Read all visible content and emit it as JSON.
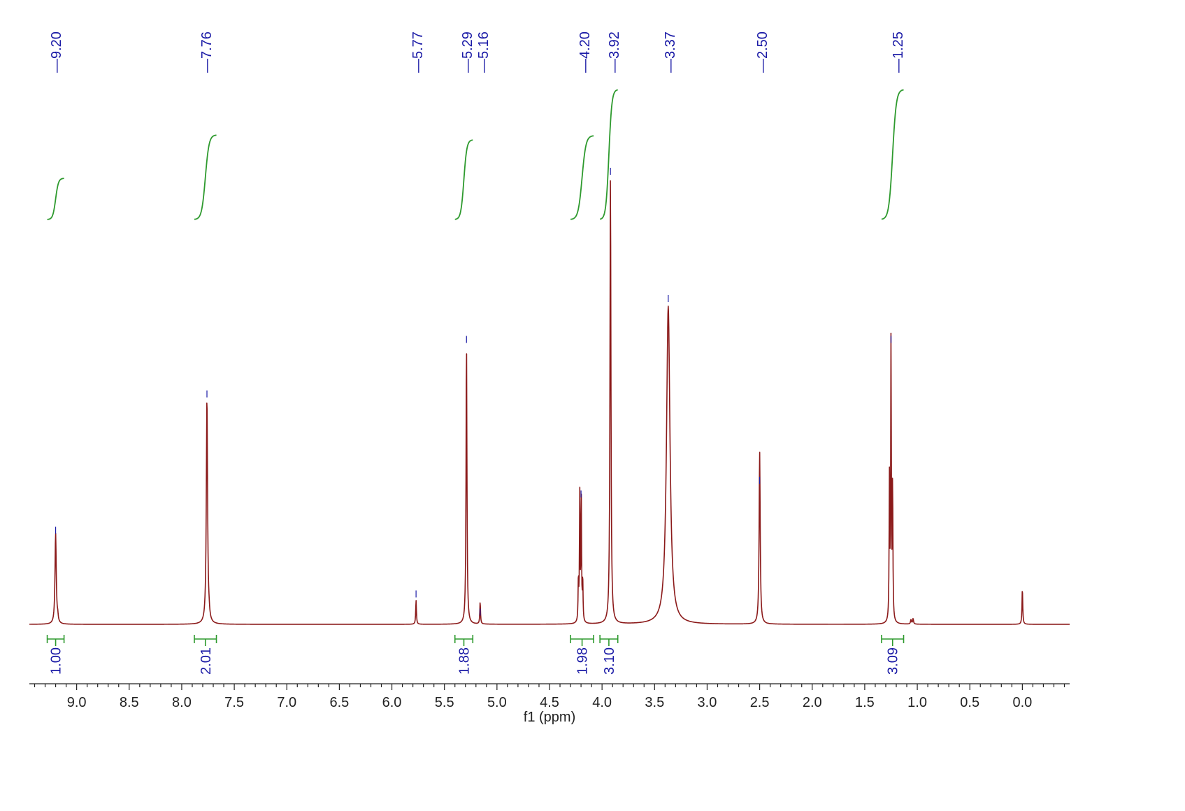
{
  "chart_data": {
    "type": "line",
    "title": "",
    "xlabel": "f1 (ppm)",
    "ylabel": "",
    "x_reversed": true,
    "xlim": [
      9.45,
      -0.45
    ],
    "ylim": [
      0,
      1.0
    ],
    "grid": false,
    "colors": {
      "spectrum": "#8b1a1a",
      "integral": "#2e9a2e",
      "label": "#1a1aa6",
      "axis": "#222222"
    },
    "x_ticks": [
      {
        "value": 9.0,
        "label": "9.0"
      },
      {
        "value": 8.5,
        "label": "8.5"
      },
      {
        "value": 8.0,
        "label": "8.0"
      },
      {
        "value": 7.5,
        "label": "7.5"
      },
      {
        "value": 7.0,
        "label": "7.0"
      },
      {
        "value": 6.5,
        "label": "6.5"
      },
      {
        "value": 6.0,
        "label": "6.0"
      },
      {
        "value": 5.5,
        "label": "5.5"
      },
      {
        "value": 5.0,
        "label": "5.0"
      },
      {
        "value": 4.5,
        "label": "4.5"
      },
      {
        "value": 4.0,
        "label": "4.0"
      },
      {
        "value": 3.5,
        "label": "3.5"
      },
      {
        "value": 3.0,
        "label": "3.0"
      },
      {
        "value": 2.5,
        "label": "2.5"
      },
      {
        "value": 2.0,
        "label": "2.0"
      },
      {
        "value": 1.5,
        "label": "1.5"
      },
      {
        "value": 1.0,
        "label": "1.0"
      },
      {
        "value": 0.5,
        "label": "0.5"
      },
      {
        "value": 0.0,
        "label": "0.0"
      }
    ],
    "peak_labels": [
      {
        "ppm": 9.2,
        "label": "9.20",
        "mark_height": 0.21
      },
      {
        "ppm": 7.76,
        "label": "7.76",
        "mark_height": 0.51
      },
      {
        "ppm": 5.77,
        "label": "5.77",
        "mark_height": 0.07
      },
      {
        "ppm": 5.29,
        "label": "5.29",
        "mark_height": 0.63
      },
      {
        "ppm": 5.16,
        "label": "5.16",
        "mark_height": 0.03
      },
      {
        "ppm": 4.2,
        "label": "4.20",
        "mark_height": 0.29
      },
      {
        "ppm": 3.92,
        "label": "3.92",
        "mark_height": 1.0
      },
      {
        "ppm": 3.37,
        "label": "3.37",
        "mark_height": 0.72
      },
      {
        "ppm": 2.5,
        "label": "2.50",
        "mark_height": 0.32
      },
      {
        "ppm": 1.25,
        "label": "1.25",
        "mark_height": 0.63
      }
    ],
    "integrals": [
      {
        "from": 9.28,
        "to": 9.12,
        "value": "1.00",
        "curve_from": 0.85,
        "curve_to": 0.94
      },
      {
        "from": 7.88,
        "to": 7.67,
        "value": "2.01",
        "curve_from": 0.85,
        "curve_to": 1.03
      },
      {
        "from": 5.4,
        "to": 5.23,
        "value": "1.88",
        "curve_from": 0.85,
        "curve_to": 1.02
      },
      {
        "from": 4.3,
        "to": 4.08,
        "value": "1.98",
        "curve_from": 0.85,
        "curve_to": 1.04
      },
      {
        "from": 4.02,
        "to": 3.85,
        "value": "3.10",
        "curve_from": 0.85,
        "curve_to": 1.13
      },
      {
        "from": 1.34,
        "to": 1.13,
        "value": "3.09",
        "curve_from": 0.85,
        "curve_to": 1.13
      }
    ],
    "series": [
      {
        "peaks": [
          {
            "ppm": 9.2,
            "height": 0.2,
            "width": 0.007
          },
          {
            "ppm": 9.18,
            "height": 0.012,
            "width": 0.005
          },
          {
            "ppm": 7.76,
            "height": 0.5,
            "width": 0.007
          },
          {
            "ppm": 7.74,
            "height": 0.01,
            "width": 0.006
          },
          {
            "ppm": 5.77,
            "height": 0.053,
            "width": 0.004
          },
          {
            "ppm": 5.29,
            "height": 0.615,
            "width": 0.005
          },
          {
            "ppm": 5.16,
            "height": 0.049,
            "width": 0.004
          },
          {
            "ppm": 4.225,
            "height": 0.092,
            "width": 0.0035
          },
          {
            "ppm": 4.212,
            "height": 0.278,
            "width": 0.0035
          },
          {
            "ppm": 4.198,
            "height": 0.278,
            "width": 0.0035
          },
          {
            "ppm": 4.184,
            "height": 0.092,
            "width": 0.0035
          },
          {
            "ppm": 3.92,
            "height": 0.985,
            "width": 0.0055
          },
          {
            "ppm": 3.37,
            "height": 0.7,
            "width": 0.02
          },
          {
            "ppm": 2.5,
            "height": 0.38,
            "width": 0.006
          },
          {
            "ppm": 1.265,
            "height": 0.31,
            "width": 0.0035
          },
          {
            "ppm": 1.25,
            "height": 0.62,
            "width": 0.0035
          },
          {
            "ppm": 1.235,
            "height": 0.3,
            "width": 0.0035
          },
          {
            "ppm": 1.06,
            "height": 0.01,
            "width": 0.005
          },
          {
            "ppm": 1.04,
            "height": 0.012,
            "width": 0.005
          },
          {
            "ppm": 0.0,
            "height": 0.08,
            "width": 0.004
          }
        ]
      }
    ]
  }
}
